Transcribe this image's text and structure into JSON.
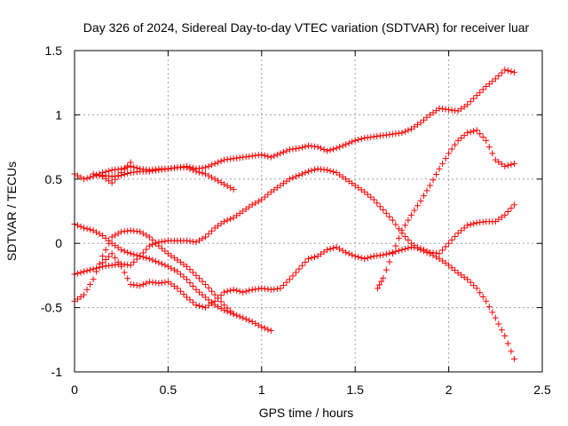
{
  "chart_data": {
    "type": "scatter",
    "title": "Day 326 of 2024, Sidereal Day-to-day VTEC variation (SDTVAR) for receiver luar",
    "xlabel": "GPS time / hours",
    "ylabel": "SDTVAR / TECUs",
    "xlim": [
      0,
      2.5
    ],
    "ylim": [
      -1,
      1.5
    ],
    "xticks": [
      "0",
      "0.5",
      "1",
      "1.5",
      "2",
      "2.5"
    ],
    "yticks": [
      "-1",
      "-0.5",
      "0",
      "0.5",
      "1",
      "1.5"
    ],
    "grid": true,
    "marker": "plus",
    "color": "#ff0000",
    "series": [
      {
        "points": [
          [
            0,
            0.54
          ],
          [
            0.05,
            0.5
          ],
          [
            0.1,
            0.52
          ],
          [
            0.15,
            0.55
          ],
          [
            0.2,
            0.57
          ],
          [
            0.25,
            0.58
          ],
          [
            0.3,
            0.6
          ],
          [
            0.35,
            0.58
          ],
          [
            0.4,
            0.57
          ],
          [
            0.45,
            0.58
          ],
          [
            0.5,
            0.58
          ],
          [
            0.55,
            0.59
          ],
          [
            0.6,
            0.6
          ],
          [
            0.65,
            0.58
          ],
          [
            0.7,
            0.59
          ],
          [
            0.75,
            0.62
          ],
          [
            0.8,
            0.65
          ],
          [
            0.85,
            0.66
          ],
          [
            0.9,
            0.67
          ],
          [
            0.95,
            0.68
          ],
          [
            1.0,
            0.69
          ],
          [
            1.05,
            0.67
          ],
          [
            1.1,
            0.7
          ],
          [
            1.15,
            0.73
          ],
          [
            1.2,
            0.74
          ],
          [
            1.25,
            0.76
          ],
          [
            1.3,
            0.75
          ],
          [
            1.35,
            0.72
          ],
          [
            1.4,
            0.74
          ],
          [
            1.45,
            0.77
          ],
          [
            1.5,
            0.8
          ],
          [
            1.55,
            0.82
          ],
          [
            1.6,
            0.83
          ],
          [
            1.65,
            0.84
          ],
          [
            1.7,
            0.85
          ],
          [
            1.75,
            0.86
          ],
          [
            1.8,
            0.89
          ],
          [
            1.85,
            0.94
          ],
          [
            1.9,
            1.0
          ],
          [
            1.95,
            1.05
          ],
          [
            2.0,
            1.04
          ],
          [
            2.05,
            1.03
          ],
          [
            2.1,
            1.08
          ],
          [
            2.15,
            1.15
          ],
          [
            2.2,
            1.22
          ],
          [
            2.25,
            1.28
          ],
          [
            2.3,
            1.35
          ],
          [
            2.35,
            1.33
          ]
        ]
      },
      {
        "points": [
          [
            0.15,
            0.53
          ],
          [
            0.2,
            0.52
          ],
          [
            0.25,
            0.53
          ],
          [
            0.3,
            0.55
          ],
          [
            0.35,
            0.56
          ],
          [
            0.4,
            0.56
          ],
          [
            0.45,
            0.57
          ],
          [
            0.5,
            0.58
          ],
          [
            0.55,
            0.59
          ],
          [
            0.6,
            0.59
          ],
          [
            0.65,
            0.56
          ],
          [
            0.7,
            0.54
          ],
          [
            0.75,
            0.5
          ],
          [
            0.8,
            0.46
          ],
          [
            0.85,
            0.42
          ]
        ]
      },
      {
        "points": [
          [
            0.1,
            0.54
          ],
          [
            0.15,
            0.52
          ],
          [
            0.2,
            0.47
          ],
          [
            0.25,
            0.55
          ],
          [
            0.3,
            0.63
          ]
        ]
      },
      {
        "points": [
          [
            0,
            0.15
          ],
          [
            0.05,
            0.12
          ],
          [
            0.1,
            0.1
          ],
          [
            0.15,
            0.06
          ],
          [
            0.2,
            0.0
          ],
          [
            0.25,
            -0.05
          ],
          [
            0.3,
            -0.08
          ],
          [
            0.35,
            -0.1
          ],
          [
            0.4,
            -0.12
          ],
          [
            0.45,
            -0.15
          ],
          [
            0.5,
            -0.18
          ],
          [
            0.55,
            -0.22
          ],
          [
            0.6,
            -0.28
          ],
          [
            0.65,
            -0.36
          ],
          [
            0.7,
            -0.42
          ],
          [
            0.75,
            -0.48
          ],
          [
            0.8,
            -0.52
          ],
          [
            0.85,
            -0.55
          ],
          [
            0.9,
            -0.58
          ],
          [
            0.95,
            -0.61
          ],
          [
            1.0,
            -0.65
          ],
          [
            1.05,
            -0.68
          ]
        ]
      },
      {
        "points": [
          [
            0,
            -0.24
          ],
          [
            0.05,
            -0.22
          ],
          [
            0.1,
            -0.2
          ],
          [
            0.15,
            -0.18
          ],
          [
            0.2,
            -0.17
          ],
          [
            0.25,
            -0.16
          ],
          [
            0.3,
            -0.17
          ],
          [
            0.35,
            -0.1
          ],
          [
            0.4,
            -0.02
          ],
          [
            0.45,
            0.01
          ],
          [
            0.5,
            0.02
          ],
          [
            0.55,
            0.02
          ],
          [
            0.6,
            0.02
          ],
          [
            0.65,
            0.01
          ],
          [
            0.7,
            0.05
          ],
          [
            0.75,
            0.12
          ],
          [
            0.8,
            0.17
          ],
          [
            0.85,
            0.2
          ],
          [
            0.9,
            0.25
          ],
          [
            0.95,
            0.3
          ],
          [
            1.0,
            0.34
          ],
          [
            1.05,
            0.4
          ],
          [
            1.1,
            0.45
          ],
          [
            1.15,
            0.5
          ],
          [
            1.2,
            0.53
          ],
          [
            1.25,
            0.56
          ],
          [
            1.3,
            0.58
          ],
          [
            1.35,
            0.57
          ],
          [
            1.4,
            0.55
          ],
          [
            1.45,
            0.5
          ],
          [
            1.5,
            0.45
          ],
          [
            1.55,
            0.4
          ],
          [
            1.6,
            0.34
          ],
          [
            1.65,
            0.26
          ],
          [
            1.7,
            0.18
          ],
          [
            1.75,
            0.08
          ],
          [
            1.8,
            0.0
          ],
          [
            1.85,
            -0.05
          ],
          [
            1.9,
            -0.08
          ],
          [
            1.95,
            -0.12
          ],
          [
            2.0,
            -0.17
          ],
          [
            2.05,
            -0.23
          ],
          [
            2.1,
            -0.28
          ],
          [
            2.15,
            -0.35
          ],
          [
            2.2,
            -0.45
          ],
          [
            2.25,
            -0.58
          ],
          [
            2.3,
            -0.72
          ],
          [
            2.35,
            -0.9
          ]
        ]
      },
      {
        "points": [
          [
            0,
            -0.45
          ],
          [
            0.05,
            -0.4
          ],
          [
            0.1,
            -0.28
          ],
          [
            0.15,
            -0.1
          ],
          [
            0.2,
            0.05
          ],
          [
            0.25,
            0.09
          ],
          [
            0.3,
            0.1
          ],
          [
            0.35,
            0.09
          ],
          [
            0.4,
            0.05
          ],
          [
            0.45,
            -0.02
          ],
          [
            0.5,
            -0.08
          ],
          [
            0.55,
            -0.13
          ],
          [
            0.6,
            -0.18
          ],
          [
            0.65,
            -0.25
          ],
          [
            0.7,
            -0.32
          ],
          [
            0.75,
            -0.4
          ],
          [
            0.8,
            -0.48
          ],
          [
            0.85,
            -0.55
          ]
        ]
      },
      {
        "points": [
          [
            0.15,
            -0.15
          ],
          [
            0.2,
            -0.08
          ],
          [
            0.25,
            -0.18
          ],
          [
            0.3,
            -0.32
          ],
          [
            0.35,
            -0.33
          ],
          [
            0.4,
            -0.3
          ],
          [
            0.45,
            -0.31
          ],
          [
            0.5,
            -0.3
          ],
          [
            0.55,
            -0.35
          ],
          [
            0.6,
            -0.42
          ],
          [
            0.65,
            -0.48
          ],
          [
            0.7,
            -0.5
          ],
          [
            0.75,
            -0.45
          ],
          [
            0.8,
            -0.38
          ],
          [
            0.85,
            -0.36
          ],
          [
            0.9,
            -0.38
          ],
          [
            0.95,
            -0.36
          ],
          [
            1.0,
            -0.35
          ],
          [
            1.05,
            -0.36
          ],
          [
            1.1,
            -0.35
          ],
          [
            1.15,
            -0.28
          ],
          [
            1.2,
            -0.2
          ],
          [
            1.25,
            -0.12
          ],
          [
            1.3,
            -0.1
          ],
          [
            1.35,
            -0.05
          ],
          [
            1.4,
            -0.03
          ],
          [
            1.45,
            -0.07
          ],
          [
            1.5,
            -0.1
          ],
          [
            1.55,
            -0.12
          ],
          [
            1.6,
            -0.1
          ],
          [
            1.65,
            -0.09
          ],
          [
            1.7,
            -0.07
          ],
          [
            1.75,
            -0.05
          ],
          [
            1.8,
            -0.03
          ],
          [
            1.85,
            -0.04
          ],
          [
            1.9,
            -0.07
          ],
          [
            1.95,
            -0.08
          ],
          [
            2.0,
            0.0
          ],
          [
            2.05,
            0.08
          ],
          [
            2.1,
            0.14
          ],
          [
            2.15,
            0.16
          ],
          [
            2.2,
            0.17
          ],
          [
            2.25,
            0.17
          ],
          [
            2.3,
            0.22
          ],
          [
            2.35,
            0.3
          ]
        ]
      },
      {
        "points": [
          [
            1.62,
            -0.35
          ],
          [
            1.65,
            -0.27
          ],
          [
            1.7,
            -0.08
          ],
          [
            1.75,
            0.1
          ],
          [
            1.8,
            0.22
          ],
          [
            1.85,
            0.33
          ],
          [
            1.9,
            0.45
          ],
          [
            1.95,
            0.58
          ],
          [
            2.0,
            0.7
          ],
          [
            2.05,
            0.8
          ],
          [
            2.1,
            0.86
          ],
          [
            2.15,
            0.88
          ],
          [
            2.2,
            0.8
          ],
          [
            2.25,
            0.65
          ],
          [
            2.3,
            0.6
          ],
          [
            2.35,
            0.62
          ]
        ]
      }
    ]
  }
}
